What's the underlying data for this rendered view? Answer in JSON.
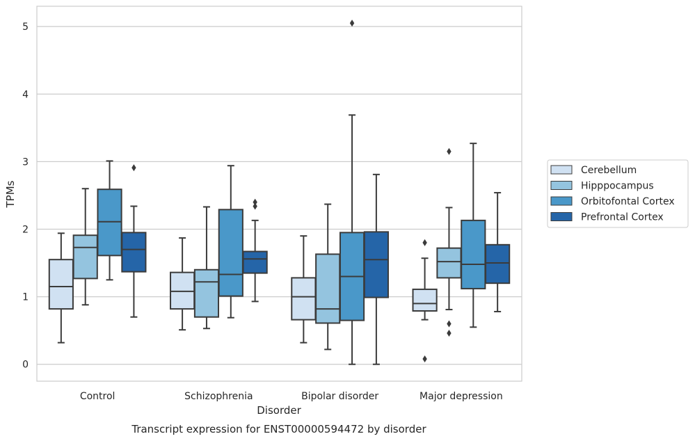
{
  "chart_data": {
    "type": "box",
    "title": "Transcript expression for ENST00000594472 by disorder",
    "xlabel": "Disorder",
    "ylabel": "TPMs",
    "ylim": [
      -0.25,
      5.3
    ],
    "yticks": [
      0,
      1,
      2,
      3,
      4,
      5
    ],
    "grid": "horizontal",
    "legend_position": "right",
    "categories": [
      "Control",
      "Schizophrenia",
      "Bipolar disorder",
      "Major depression"
    ],
    "series": [
      {
        "name": "Cerebellum",
        "color": "#d0e1f2",
        "boxes": [
          {
            "whisker_low": 0.32,
            "q1": 0.82,
            "median": 1.15,
            "q3": 1.55,
            "whisker_high": 1.94,
            "outliers": []
          },
          {
            "whisker_low": 0.51,
            "q1": 0.82,
            "median": 1.08,
            "q3": 1.36,
            "whisker_high": 1.87,
            "outliers": []
          },
          {
            "whisker_low": 0.32,
            "q1": 0.66,
            "median": 1.0,
            "q3": 1.28,
            "whisker_high": 1.9,
            "outliers": []
          },
          {
            "whisker_low": 0.66,
            "q1": 0.79,
            "median": 0.9,
            "q3": 1.11,
            "whisker_high": 1.57,
            "outliers": [
              1.8,
              0.08
            ]
          }
        ]
      },
      {
        "name": "Hipppocampus",
        "color": "#94c4df",
        "boxes": [
          {
            "whisker_low": 0.88,
            "q1": 1.27,
            "median": 1.73,
            "q3": 1.91,
            "whisker_high": 2.6,
            "outliers": []
          },
          {
            "whisker_low": 0.53,
            "q1": 0.7,
            "median": 1.22,
            "q3": 1.4,
            "whisker_high": 2.33,
            "outliers": []
          },
          {
            "whisker_low": 0.22,
            "q1": 0.61,
            "median": 0.82,
            "q3": 1.63,
            "whisker_high": 2.37,
            "outliers": []
          },
          {
            "whisker_low": 0.81,
            "q1": 1.28,
            "median": 1.52,
            "q3": 1.72,
            "whisker_high": 2.32,
            "outliers": [
              3.15,
              0.6,
              0.46
            ]
          }
        ]
      },
      {
        "name": "Orbitofontal Cortex",
        "color": "#4a98c9",
        "boxes": [
          {
            "whisker_low": 1.25,
            "q1": 1.61,
            "median": 2.11,
            "q3": 2.59,
            "whisker_high": 3.01,
            "outliers": []
          },
          {
            "whisker_low": 0.69,
            "q1": 1.01,
            "median": 1.33,
            "q3": 2.29,
            "whisker_high": 2.94,
            "outliers": []
          },
          {
            "whisker_low": 0.0,
            "q1": 0.65,
            "median": 1.3,
            "q3": 1.95,
            "whisker_high": 3.69,
            "outliers": [
              5.05
            ]
          },
          {
            "whisker_low": 0.55,
            "q1": 1.12,
            "median": 1.48,
            "q3": 2.13,
            "whisker_high": 3.27,
            "outliers": []
          }
        ]
      },
      {
        "name": "Prefrontal Cortex",
        "color": "#2565a8",
        "boxes": [
          {
            "whisker_low": 0.7,
            "q1": 1.37,
            "median": 1.7,
            "q3": 1.95,
            "whisker_high": 2.34,
            "outliers": [
              2.91
            ]
          },
          {
            "whisker_low": 0.93,
            "q1": 1.35,
            "median": 1.56,
            "q3": 1.67,
            "whisker_high": 2.13,
            "outliers": [
              2.4,
              2.34
            ]
          },
          {
            "whisker_low": 0.0,
            "q1": 0.99,
            "median": 1.55,
            "q3": 1.96,
            "whisker_high": 2.81,
            "outliers": []
          },
          {
            "whisker_low": 0.78,
            "q1": 1.2,
            "median": 1.5,
            "q3": 1.77,
            "whisker_high": 2.54,
            "outliers": []
          }
        ]
      }
    ]
  }
}
